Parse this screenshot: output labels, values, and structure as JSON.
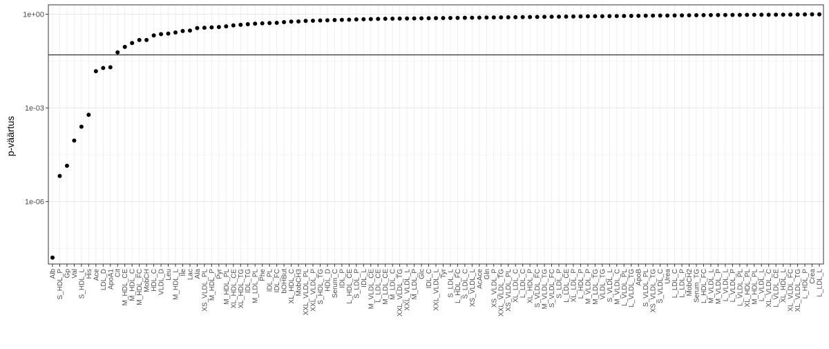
{
  "chart_data": {
    "type": "scatter",
    "title": "",
    "xlabel": "",
    "ylabel": "p-väärtus",
    "y_scale": "log10",
    "ylim": [
      1e-08,
      2.0
    ],
    "y_ticks": [
      {
        "value": 1,
        "label": "1e+00"
      },
      {
        "value": 0.001,
        "label": "1e-03"
      },
      {
        "value": 1e-06,
        "label": "1e-06"
      }
    ],
    "reference_line": {
      "value": 0.05
    },
    "grid": true,
    "legend": "none",
    "point_color": "#000000",
    "categories": [
      "Alb",
      "S_HDL_P",
      "Gp",
      "Val",
      "S_HDL_L",
      "His",
      "Ace",
      "LDL_D",
      "ApoA1",
      "Cit",
      "M_HDL_CE",
      "M_HDL_C",
      "M_HDL_FC",
      "MobCH",
      "HDL_C",
      "VLDL_D",
      "Leu",
      "M_HDL_L",
      "Ile",
      "Lac",
      "Ala",
      "XS_VLDL_PL",
      "M_HDL_P",
      "Pyr",
      "M_HDL_PL",
      "XL_HDL_CE",
      "XL_HDL_TG",
      "IDL_TG",
      "M_LDL_PL",
      "Phe",
      "IDL_PL",
      "IDL_FC",
      "bOHBut",
      "XL_HDL_C",
      "MobCH3",
      "XXL_VLDL_PL",
      "XXL_VLDL_P",
      "S_HDL_TG",
      "HDL_D",
      "Serum_C",
      "IDL_P",
      "L_HDL_CE",
      "S_LDL_P",
      "IDL_L",
      "M_VLDL_CE",
      "L_LDL_CE",
      "M_LDL_CE",
      "M_LDL_C",
      "XXL_VLDL_TG",
      "XXL_VLDL_L",
      "M_LDL_P",
      "Glc",
      "IDL_C",
      "XXL_VLDL_L",
      "Tyr",
      "S_LDL_L",
      "L_HDL_FC",
      "S_LDL_C",
      "XS_VLDL_L",
      "AcAce",
      "Gln",
      "XS_VLDL_P",
      "XXL_VLDL_TG",
      "XS_VLDL_PL",
      "XL_LDL_C",
      "L_LDL_C",
      "XL_HDL_P",
      "S_VLDL_FC",
      "M_VLDL_TG",
      "S_VLDL_FC",
      "S_LDL_P",
      "L_LDL_CE",
      "XL_LDL_P",
      "L_HDL_P",
      "M_VLDL_P",
      "M_LDL_TG",
      "VLDL_TG",
      "S_VLDL_L",
      "M_VLDL_C",
      "L_VLDL_PL",
      "L_VLDL_TG",
      "ApoB",
      "S_VLDL_PL",
      "XS_VLDL_TG",
      "S_VLDL_C",
      "Urea",
      "L_LDL_C",
      "L_LDL_P",
      "MobCH2",
      "Serum_TG",
      "L_HDL_FC",
      "M_VLDL_L",
      "M_VLDL_P",
      "L_VLDL_L",
      "L_VLDL_P",
      "L_VLDL_PL",
      "XL_HDL_PL",
      "M_HDL_PL",
      "L_VLDL_L",
      "XL_VLDL_C",
      "L_VLDL_CE",
      "XL_HDL_L",
      "XL_VLDL_FC",
      "XL_VLDL_TG",
      "L_HDL_P",
      "Crea",
      "L_LDL_L"
    ],
    "values": [
      1.6e-08,
      6.6e-06,
      1.4e-05,
      9e-05,
      0.00025,
      0.0006,
      0.015,
      0.019,
      0.02,
      0.06,
      0.09,
      0.12,
      0.15,
      0.15,
      0.21,
      0.23,
      0.24,
      0.26,
      0.29,
      0.3,
      0.36,
      0.37,
      0.38,
      0.39,
      0.41,
      0.44,
      0.46,
      0.48,
      0.5,
      0.51,
      0.52,
      0.53,
      0.56,
      0.58,
      0.59,
      0.61,
      0.62,
      0.63,
      0.64,
      0.65,
      0.66,
      0.67,
      0.68,
      0.69,
      0.7,
      0.71,
      0.715,
      0.72,
      0.725,
      0.73,
      0.735,
      0.74,
      0.745,
      0.75,
      0.755,
      0.76,
      0.765,
      0.77,
      0.775,
      0.78,
      0.785,
      0.79,
      0.795,
      0.8,
      0.805,
      0.81,
      0.815,
      0.82,
      0.825,
      0.83,
      0.835,
      0.84,
      0.845,
      0.85,
      0.855,
      0.86,
      0.865,
      0.87,
      0.875,
      0.88,
      0.885,
      0.89,
      0.895,
      0.9,
      0.905,
      0.91,
      0.915,
      0.92,
      0.925,
      0.93,
      0.935,
      0.94,
      0.943,
      0.946,
      0.949,
      0.952,
      0.955,
      0.958,
      0.961,
      0.964,
      0.967,
      0.97,
      0.975,
      0.98,
      0.985,
      0.99,
      0.995
    ]
  }
}
